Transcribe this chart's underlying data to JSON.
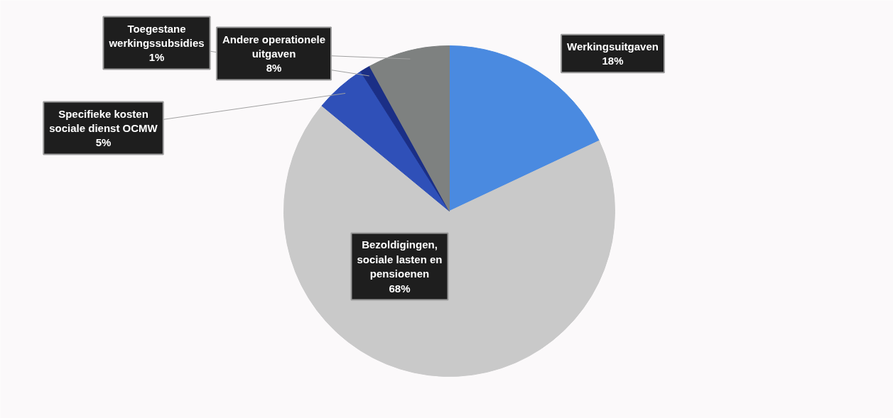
{
  "chart_data": {
    "type": "pie",
    "categories": [
      "Werkingsuitgaven",
      "Bezoldigingen, sociale lasten en pensioenen",
      "Specifieke kosten sociale dienst OCMW",
      "Toegestane werkingssubsidies",
      "Andere operationele uitgaven"
    ],
    "values": [
      18,
      68,
      5,
      1,
      8
    ],
    "value_labels": [
      "18%",
      "68%",
      "5%",
      "1%",
      "8%"
    ],
    "colors": [
      "#4a8ae0",
      "#c9c9c9",
      "#2f50b8",
      "#1b2f86",
      "#7e8180"
    ]
  }
}
